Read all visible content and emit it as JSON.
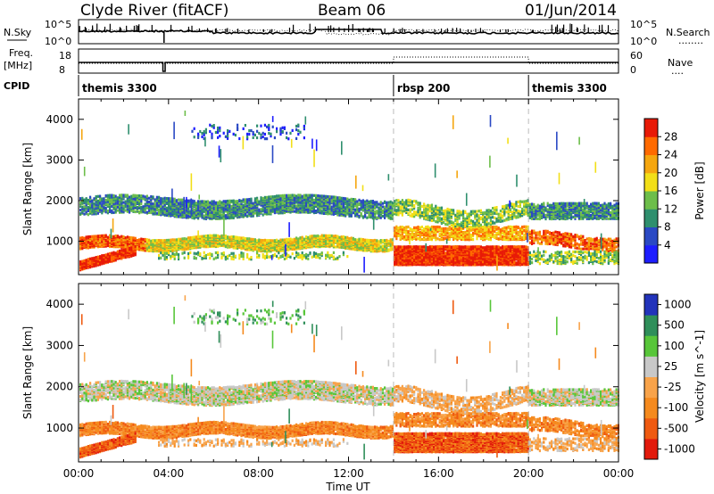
{
  "header": {
    "station": "Clyde River (fitACF)",
    "beam": "Beam 06",
    "date": "01/Jun/2014"
  },
  "strip_labels": {
    "nsky": "N.Sky",
    "nsearch": "N.Search",
    "nsearch_dots": "........",
    "freq": "Freq.",
    "freq_unit": "[MHz]",
    "nave": "Nave",
    "nave_dots": "....",
    "cpid": "CPID"
  },
  "strip_ticks": {
    "noise_top": "10^5",
    "noise_bottom": "10^0",
    "noise_top_right": "10^5",
    "noise_bottom_right": "10^0",
    "freq_top": "18",
    "freq_bottom": "8",
    "nave_top": "60",
    "nave_bottom": "0"
  },
  "cpid_segments": [
    {
      "label": "themis 3300",
      "start_hour": 0
    },
    {
      "label": "rbsp 200",
      "start_hour": 14
    },
    {
      "label": "themis 3300",
      "start_hour": 20
    }
  ],
  "chart_data": [
    {
      "type": "heatmap",
      "quantity": "Power",
      "ylabel": "Slant Range [km]",
      "colorbar_label": "Power [dB]",
      "xlim_hours": [
        0,
        24
      ],
      "ylim_km": [
        180,
        4500
      ],
      "yticks": [
        1000,
        2000,
        3000,
        4000
      ],
      "colorbar_ticks": [
        "4",
        "8",
        "12",
        "16",
        "20",
        "24",
        "28"
      ],
      "colorbar_colors": [
        "#1d1dff",
        "#2a49c4",
        "#2f8f6e",
        "#6dbe4a",
        "#f2df18",
        "#f5a60f",
        "#ff6a00",
        "#e81a07"
      ],
      "mode_boundaries_hours": [
        14,
        20
      ]
    },
    {
      "type": "heatmap",
      "quantity": "Velocity",
      "ylabel": "Slant Range [km]",
      "colorbar_label": "Velocity [m s^-1]",
      "xlabel": "Time UT",
      "xlim_hours": [
        0,
        24
      ],
      "ylim_km": [
        180,
        4500
      ],
      "yticks": [
        1000,
        2000,
        3000,
        4000
      ],
      "xticks": [
        "00:00",
        "04:00",
        "08:00",
        "12:00",
        "16:00",
        "20:00",
        "00:00"
      ],
      "colorbar_ticks": [
        "1000",
        "500",
        "100",
        "25",
        "-25",
        "-100",
        "-500",
        "-1000"
      ],
      "colorbar_colors": [
        "#2233bb",
        "#2f8f5a",
        "#58c63a",
        "#c8c8c8",
        "#f8a34a",
        "#f58a1e",
        "#ef5a10",
        "#e21a0c"
      ],
      "mode_boundaries_hours": [
        14,
        20
      ]
    }
  ]
}
